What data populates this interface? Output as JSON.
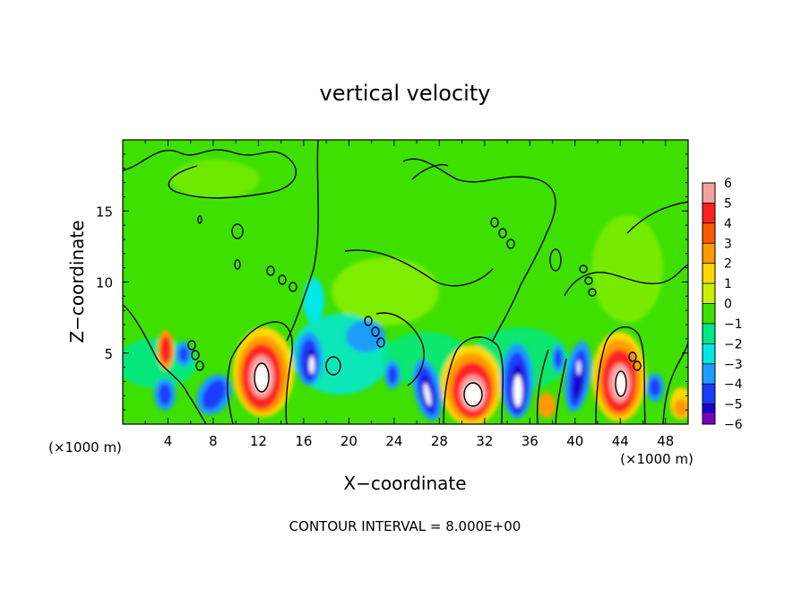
{
  "chart_data": {
    "type": "heatmap",
    "title": "vertical velocity",
    "xlabel": "X−coordinate",
    "ylabel": "Z−coordinate",
    "x_unit_left": "(×1000 m)",
    "x_unit_right": "(×1000 m)",
    "xlim": [
      0,
      50
    ],
    "ylim": [
      0,
      20
    ],
    "x_ticks": [
      4,
      8,
      12,
      16,
      20,
      24,
      28,
      32,
      36,
      40,
      44,
      48
    ],
    "y_ticks": [
      5,
      10,
      15
    ],
    "x_tick_labels": [
      "4",
      "8",
      "12",
      "16",
      "20",
      "24",
      "28",
      "32",
      "36",
      "40",
      "44",
      "48"
    ],
    "y_tick_labels": [
      "5",
      "10",
      "15"
    ],
    "colorbar": {
      "levels": [
        6,
        5,
        4,
        3,
        2,
        1,
        0,
        -1,
        -2,
        -3,
        -4,
        -5,
        -6
      ],
      "labels": [
        "6",
        "5",
        "4",
        "3",
        "2",
        "1",
        "0",
        "−1",
        "−2",
        "−3",
        "−4",
        "−5",
        "−6"
      ],
      "colors": [
        "#f7a0a0",
        "#ff2020",
        "#ff5a00",
        "#ff9a00",
        "#ffd800",
        "#c8f000",
        "#3ee000",
        "#00e888",
        "#00e8e8",
        "#1f9cff",
        "#1a3cff",
        "#1e00c8",
        "#7a00c0"
      ]
    },
    "cells": [
      {
        "x": 4,
        "z": 5.5,
        "w": 6
      },
      {
        "x": 7.5,
        "z": 2.5,
        "w": -4
      },
      {
        "x": 12,
        "z": 3.5,
        "w": 6
      },
      {
        "x": 16.5,
        "z": 4.5,
        "w": -5
      },
      {
        "x": 19,
        "z": 6,
        "w": -2
      },
      {
        "x": 24,
        "z": 3.5,
        "w": -4
      },
      {
        "x": 26.5,
        "z": 2.5,
        "w": -5
      },
      {
        "x": 31,
        "z": 2,
        "w": 6
      },
      {
        "x": 34.5,
        "z": 2.5,
        "w": -5
      },
      {
        "x": 40,
        "z": 3.5,
        "w": -5
      },
      {
        "x": 44,
        "z": 3,
        "w": 6
      },
      {
        "x": 48.5,
        "z": 2.5,
        "w": 2
      }
    ],
    "contour_interval_text": "CONTOUR INTERVAL = 8.000E+00"
  }
}
